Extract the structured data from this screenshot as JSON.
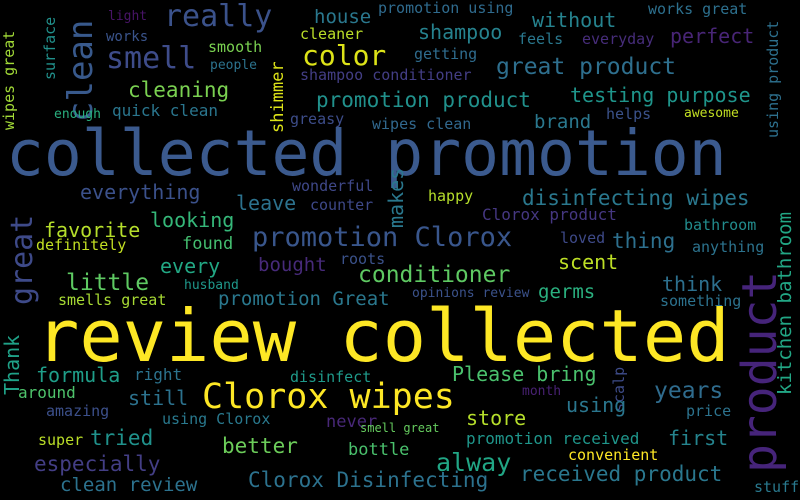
{
  "words": [
    {
      "text": "collected promotion",
      "color": "#3b5a8e"
    },
    {
      "text": "review collected",
      "color": "#fde725"
    },
    {
      "text": "product",
      "color": "#46247a"
    },
    {
      "text": "Clorox wipes",
      "color": "#fde725"
    },
    {
      "text": "promotion Clorox",
      "color": "#39568c"
    },
    {
      "text": "really",
      "color": "#3b528b"
    },
    {
      "text": "smell",
      "color": "#3e4c8a"
    },
    {
      "text": "clean",
      "color": "#38598c"
    },
    {
      "text": "color",
      "color": "#dde318"
    },
    {
      "text": "great",
      "color": "#3e4a89"
    },
    {
      "text": "great product",
      "color": "#2e6f8e"
    },
    {
      "text": "promotion product",
      "color": "#21918c"
    },
    {
      "text": "disinfecting wipes",
      "color": "#2a788e"
    },
    {
      "text": "conditioner",
      "color": "#5ec962"
    },
    {
      "text": "Clorox Disinfecting",
      "color": "#2c728e"
    },
    {
      "text": "received product",
      "color": "#2a778e"
    },
    {
      "text": "alway",
      "color": "#21a685"
    },
    {
      "text": "kitchen bathroom",
      "color": "#22a785"
    },
    {
      "text": "cleaning",
      "color": "#7ad151"
    },
    {
      "text": "testing purpose",
      "color": "#1f958b"
    },
    {
      "text": "without",
      "color": "#26838f"
    },
    {
      "text": "shampoo",
      "color": "#26828e"
    },
    {
      "text": "perfect",
      "color": "#482576"
    },
    {
      "text": "house",
      "color": "#2a788e"
    },
    {
      "text": "works great",
      "color": "#2d708e"
    },
    {
      "text": "promotion using",
      "color": "#2f6b8e"
    },
    {
      "text": "light",
      "color": "#481467"
    },
    {
      "text": "works",
      "color": "#3a548c"
    },
    {
      "text": "wipes great",
      "color": "#a2da37"
    },
    {
      "text": "surface",
      "color": "#21918c"
    },
    {
      "text": "smooth",
      "color": "#7ad151"
    },
    {
      "text": "people",
      "color": "#2c738e"
    },
    {
      "text": "cleaner",
      "color": "#bade28"
    },
    {
      "text": "getting",
      "color": "#2f6c8e"
    },
    {
      "text": "feels",
      "color": "#2a788e"
    },
    {
      "text": "everyday",
      "color": "#472d7b"
    },
    {
      "text": "using product",
      "color": "#2d708e"
    },
    {
      "text": "shampoo conditioner",
      "color": "#433e85"
    },
    {
      "text": "enough",
      "color": "#29af7f"
    },
    {
      "text": "quick clean",
      "color": "#2a768e"
    },
    {
      "text": "shimmer",
      "color": "#dde318"
    },
    {
      "text": "greasy",
      "color": "#3d4d8a"
    },
    {
      "text": "wipes clean",
      "color": "#31688e"
    },
    {
      "text": "brand",
      "color": "#2a788e"
    },
    {
      "text": "helps",
      "color": "#3b528b"
    },
    {
      "text": "awesome",
      "color": "#c2df23"
    },
    {
      "text": "everything",
      "color": "#3b518b"
    },
    {
      "text": "wonderful",
      "color": "#3f4889"
    },
    {
      "text": "counter",
      "color": "#3e4989"
    },
    {
      "text": "happy",
      "color": "#b5de2b"
    },
    {
      "text": "makes",
      "color": "#2a788e"
    },
    {
      "text": "leave",
      "color": "#2c728e"
    },
    {
      "text": "looking",
      "color": "#35b779"
    },
    {
      "text": "favorite",
      "color": "#b5de2b"
    },
    {
      "text": "definitely",
      "color": "#c2df23"
    },
    {
      "text": "found",
      "color": "#44bf70"
    },
    {
      "text": "Clorox product",
      "color": "#453781"
    },
    {
      "text": "bathroom",
      "color": "#228c8d"
    },
    {
      "text": "loved",
      "color": "#3e4a89"
    },
    {
      "text": "thing",
      "color": "#2d708e"
    },
    {
      "text": "anything",
      "color": "#2c738e"
    },
    {
      "text": "every",
      "color": "#22a884"
    },
    {
      "text": "bought",
      "color": "#472a7a"
    },
    {
      "text": "roots",
      "color": "#3b528b"
    },
    {
      "text": "scent",
      "color": "#bddf26"
    },
    {
      "text": "think",
      "color": "#2d708e"
    },
    {
      "text": "little",
      "color": "#5ec962"
    },
    {
      "text": "husband",
      "color": "#1f988b"
    },
    {
      "text": "promotion Great",
      "color": "#2a788e"
    },
    {
      "text": "opinions review",
      "color": "#3b528b"
    },
    {
      "text": "germs",
      "color": "#2ab07f"
    },
    {
      "text": "something",
      "color": "#2c728e"
    },
    {
      "text": "smells great",
      "color": "#a8db34"
    },
    {
      "text": "Thank",
      "color": "#1fa187"
    },
    {
      "text": "formula",
      "color": "#1f9e89"
    },
    {
      "text": "right",
      "color": "#2c738e"
    },
    {
      "text": "disinfect",
      "color": "#1f9a8a"
    },
    {
      "text": "Please bring",
      "color": "#4ac16d"
    },
    {
      "text": "years",
      "color": "#2f6c8e"
    },
    {
      "text": "scalp",
      "color": "#3e4c8a"
    },
    {
      "text": "month",
      "color": "#482173"
    },
    {
      "text": "around",
      "color": "#4ec36b"
    },
    {
      "text": "still",
      "color": "#2c728e"
    },
    {
      "text": "using",
      "color": "#2a768e"
    },
    {
      "text": "price",
      "color": "#2c738e"
    },
    {
      "text": "amazing",
      "color": "#3c508b"
    },
    {
      "text": "using Clorox",
      "color": "#29798e"
    },
    {
      "text": "never",
      "color": "#482878"
    },
    {
      "text": "smell great",
      "color": "#65cb5e"
    },
    {
      "text": "store",
      "color": "#b5de2b"
    },
    {
      "text": "promotion received",
      "color": "#1f968b"
    },
    {
      "text": "first",
      "color": "#25848e"
    },
    {
      "text": "super",
      "color": "#bade28"
    },
    {
      "text": "tried",
      "color": "#20928c"
    },
    {
      "text": "better",
      "color": "#6ccd5a"
    },
    {
      "text": "bottle",
      "color": "#4ac16d"
    },
    {
      "text": "convenient",
      "color": "#fde725"
    },
    {
      "text": "especially",
      "color": "#433e85"
    },
    {
      "text": "clean review",
      "color": "#2c728e"
    },
    {
      "text": "stuff",
      "color": "#29798e"
    }
  ]
}
